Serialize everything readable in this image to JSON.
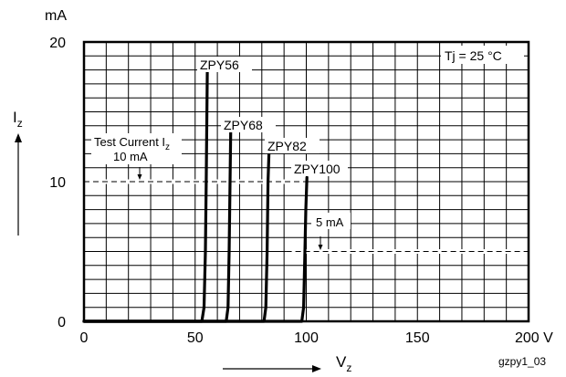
{
  "chart_data": {
    "type": "line",
    "y_unit": "mA",
    "ylabel_main": "I",
    "ylabel_sub": "z",
    "xlabel_main": "V",
    "xlabel_sub": "z",
    "x_ticks": [
      "0",
      "50",
      "100",
      "150",
      "200 V"
    ],
    "y_ticks": [
      "0",
      "10",
      "20"
    ],
    "xlim": [
      0,
      200
    ],
    "ylim": [
      0,
      20
    ],
    "grid": true,
    "condition_box": "Tj = 25 °C",
    "figure_id": "gzpy1_03",
    "series": [
      {
        "name": "ZPY56",
        "values": [
          [
            0,
            0
          ],
          [
            53,
            0
          ],
          [
            54,
            1
          ],
          [
            54.6,
            5
          ],
          [
            55,
            10
          ],
          [
            55.5,
            18
          ]
        ]
      },
      {
        "name": "ZPY68",
        "values": [
          [
            0,
            0
          ],
          [
            64,
            0
          ],
          [
            64.8,
            1
          ],
          [
            65.3,
            5
          ],
          [
            65.7,
            10
          ],
          [
            66,
            13.5
          ]
        ]
      },
      {
        "name": "ZPY82",
        "values": [
          [
            0,
            0
          ],
          [
            81,
            0
          ],
          [
            81.8,
            1
          ],
          [
            82.4,
            5
          ],
          [
            82.8,
            10
          ],
          [
            83.2,
            12
          ]
        ]
      },
      {
        "name": "ZPY100",
        "values": [
          [
            0,
            0
          ],
          [
            98,
            0
          ],
          [
            98.8,
            1
          ],
          [
            99.4,
            5
          ],
          [
            99.8,
            8
          ],
          [
            100.3,
            10.3
          ]
        ]
      }
    ],
    "annotations": [
      {
        "id": "test-current-10",
        "line1": "Test Current I",
        "line1_sub": "z",
        "line2": "10 mA",
        "y": 10,
        "x_from": 0,
        "x_to": 99
      },
      {
        "id": "test-current-5",
        "line1": "5 mA",
        "y": 5,
        "x_from": 91,
        "x_to": 200
      }
    ]
  }
}
